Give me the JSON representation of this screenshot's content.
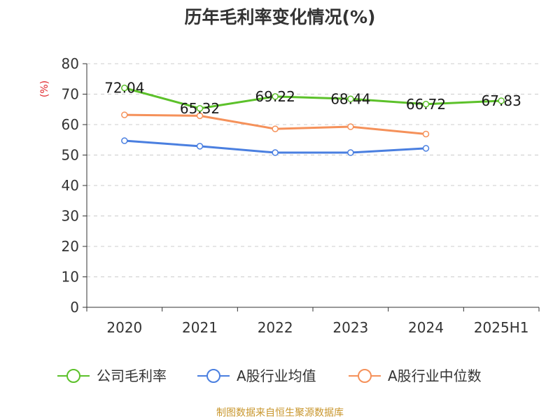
{
  "chart_data": {
    "type": "line",
    "title": "历年毛利率变化情况(%)",
    "ylabel": "(%)",
    "ylim": [
      0,
      80
    ],
    "yticks": [
      0,
      10,
      20,
      30,
      40,
      50,
      60,
      70,
      80
    ],
    "categories": [
      "2020",
      "2021",
      "2022",
      "2023",
      "2024",
      "2025H1"
    ],
    "grid": "horizontal dashed",
    "legend_position": "bottom",
    "series": [
      {
        "name": "公司毛利率",
        "color": "#5cc12a",
        "values": [
          72.04,
          65.32,
          69.22,
          68.44,
          66.72,
          67.83
        ],
        "labels": [
          "72.04",
          "65.32",
          "69.22",
          "68.44",
          "66.72",
          "67.83"
        ]
      },
      {
        "name": "A股行业均值",
        "color": "#4a7fe0",
        "values": [
          54.7,
          52.9,
          50.8,
          50.8,
          52.2,
          null
        ]
      },
      {
        "name": "A股行业中位数",
        "color": "#f5915a",
        "values": [
          63.2,
          62.9,
          58.6,
          59.3,
          56.9,
          null
        ]
      }
    ]
  },
  "footer": {
    "source": "制图数据来自恒生聚源数据库",
    "source_color": "#c8962c"
  }
}
